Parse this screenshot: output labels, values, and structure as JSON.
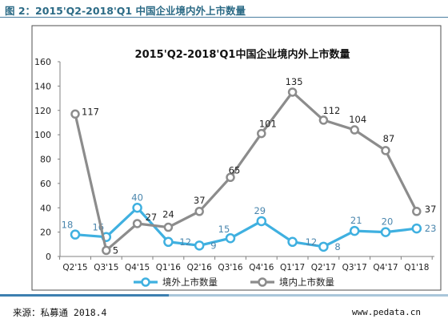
{
  "header": {
    "figure_title": "图 2：2015'Q2-2018'Q1 中国企业境内外上市数量"
  },
  "footer": {
    "source": "来源：私募通 2018.4",
    "website": "www.pedata.cn"
  },
  "colors": {
    "overseas": "#3fb0e0",
    "domestic": "#8c8c8c",
    "blue_label": "#4a86ad",
    "accent": "#3d7fb0"
  },
  "chart_data": {
    "type": "line",
    "title": "2015'Q2-2018'Q1中国企业境内外上市数量",
    "xlabel": "",
    "ylabel": "",
    "categories": [
      "Q2'15",
      "Q3'15",
      "Q4'15",
      "Q1'16",
      "Q2'16",
      "Q3'16",
      "Q4'16",
      "Q1'17",
      "Q2'17",
      "Q3'17",
      "Q4'17",
      "Q1'18"
    ],
    "ylim": [
      0,
      160
    ],
    "yticks": [
      0,
      20,
      40,
      60,
      80,
      100,
      120,
      140,
      160
    ],
    "grid": false,
    "legend_position": "bottom",
    "series": [
      {
        "name": "境外上市数量",
        "values": [
          18,
          16,
          40,
          12,
          9,
          15,
          29,
          12,
          8,
          21,
          20,
          23
        ]
      },
      {
        "name": "境内上市数量",
        "values": [
          117,
          5,
          27,
          24,
          37,
          65,
          101,
          135,
          112,
          104,
          87,
          37
        ]
      }
    ]
  }
}
